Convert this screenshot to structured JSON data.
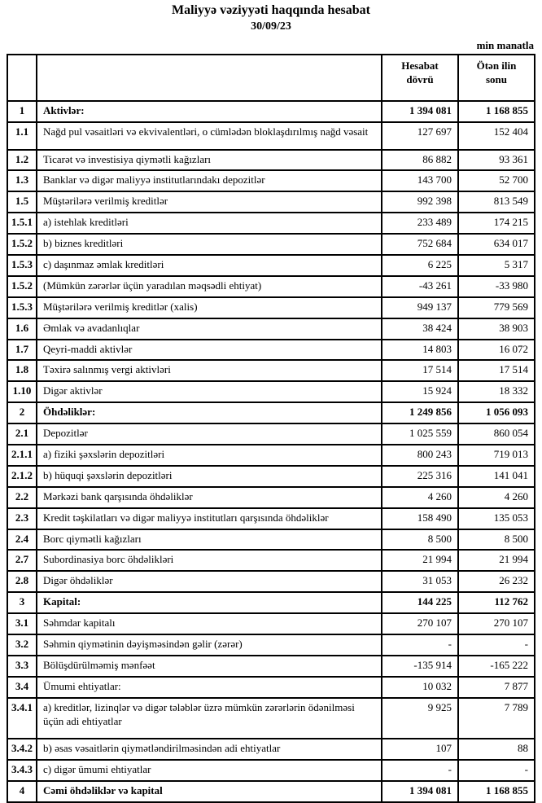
{
  "header": {
    "title": "Maliyyə vəziyyəti haqqında hesabat",
    "date": "30/09/23",
    "unit_note": "min manatla"
  },
  "table": {
    "columns": {
      "no": "",
      "label": "",
      "current": "Hesabat dövrü",
      "previous": "Ötən ilin sonu"
    },
    "rows": [
      {
        "no": "1",
        "label": "Aktivlər:",
        "current": "1 394 081",
        "previous": "1 168 855",
        "bold": true
      },
      {
        "no": "1.1",
        "label": "Nağd pul vəsaitləri və  ekvivalentləri, o cümlədən bloklaşdırılmış nağd vəsait",
        "current": "127 697",
        "previous": "152 404",
        "bold": false,
        "tall": true
      },
      {
        "no": "1.2",
        "label": "Ticarət və investisiya qiymətli kağızları",
        "current": "86 882",
        "previous": "93 361",
        "bold": false
      },
      {
        "no": "1.3",
        "label": "Banklar və digər maliyyə institutlarındakı depozitlər",
        "current": "143 700",
        "previous": "52 700",
        "bold": false
      },
      {
        "no": "1.5",
        "label": "Müştərilərə verilmiş kreditlər",
        "current": "992 398",
        "previous": "813 549",
        "bold": false
      },
      {
        "no": "1.5.1",
        "label": "a) istehlak kreditləri",
        "current": "233 489",
        "previous": "174 215",
        "bold": false
      },
      {
        "no": "1.5.2",
        "label": "b) biznes kreditləri",
        "current": "752 684",
        "previous": "634 017",
        "bold": false
      },
      {
        "no": "1.5.3",
        "label": "c) daşınmaz əmlak kreditləri",
        "current": "6 225",
        "previous": "5 317",
        "bold": false
      },
      {
        "no": "1.5.2",
        "label": "(Mümkün zərərlər üçün yaradılan məqsədli ehtiyat)",
        "current": "-43 261",
        "previous": "-33 980",
        "bold": false
      },
      {
        "no": "1.5.3",
        "label": "Müştərilərə verilmiş kreditlər (xalis)",
        "current": "949 137",
        "previous": "779 569",
        "bold": false
      },
      {
        "no": "1.6",
        "label": "Əmlak və avadanlıqlar",
        "current": "38 424",
        "previous": "38 903",
        "bold": false
      },
      {
        "no": "1.7",
        "label": "Qeyri-maddi aktivlər",
        "current": "14 803",
        "previous": "16 072",
        "bold": false
      },
      {
        "no": "1.8",
        "label": "Təxirə salınmış vergi aktivləri",
        "current": "17 514",
        "previous": "17 514",
        "bold": false
      },
      {
        "no": "1.10",
        "label": "Digər aktivlər",
        "current": "15 924",
        "previous": "18 332",
        "bold": false
      },
      {
        "no": "2",
        "label": "Öhdəliklər:",
        "current": "1 249 856",
        "previous": "1 056 093",
        "bold": true
      },
      {
        "no": "2.1",
        "label": "Depozitlər",
        "current": "1 025 559",
        "previous": "860 054",
        "bold": false
      },
      {
        "no": "2.1.1",
        "label": "a) fiziki şəxslərin depozitləri",
        "current": "800 243",
        "previous": "719 013",
        "bold": false
      },
      {
        "no": "2.1.2",
        "label": "b) hüquqi şəxslərin depozitləri",
        "current": "225 316",
        "previous": "141 041",
        "bold": false
      },
      {
        "no": "2.2",
        "label": "Mərkəzi bank qarşısında öhdəliklər",
        "current": "4 260",
        "previous": "4 260",
        "bold": false
      },
      {
        "no": "2.3",
        "label": "Kredit təşkilatları və digər maliyyə institutları qarşısında öhdəliklər",
        "current": "158 490",
        "previous": "135 053",
        "bold": false
      },
      {
        "no": "2.4",
        "label": "Borc qiymətli kağızları",
        "current": "8 500",
        "previous": "8 500",
        "bold": false
      },
      {
        "no": "2.7",
        "label": "Subordinasiya borc öhdəlikləri",
        "current": "21 994",
        "previous": "21 994",
        "bold": false
      },
      {
        "no": "2.8",
        "label": "Digər öhdəliklər",
        "current": "31 053",
        "previous": "26 232",
        "bold": false
      },
      {
        "no": "3",
        "label": "Kapital:",
        "current": "144 225",
        "previous": "112 762",
        "bold": true
      },
      {
        "no": "3.1",
        "label": "Səhmdar kapitalı",
        "current": "270 107",
        "previous": "270 107",
        "bold": false
      },
      {
        "no": "3.2",
        "label": "Səhmin qiymətinin dəyişməsindən gəlir (zərər)",
        "current": "-",
        "previous": "-",
        "bold": false
      },
      {
        "no": "3.3",
        "label": "Bölüşdürülməmiş mənfəət",
        "current": "-135 914",
        "previous": "-165 222",
        "bold": false
      },
      {
        "no": "3.4",
        "label": "Ümumi ehtiyatlar:",
        "current": "10 032",
        "previous": "7 877",
        "bold": false
      },
      {
        "no": "3.4.1",
        "label": "a) kreditlər, lizinqlər və digər tələblər üzrə mümkün zərərlərin ödənilməsi üçün adi ehtiyatlar",
        "current": "9 925",
        "previous": "7 789",
        "bold": false,
        "tall": true
      },
      {
        "no": "3.4.2",
        "label": "b) əsas vəsaitlərin qiymətləndirilməsindən adi ehtiyatlar",
        "current": "107",
        "previous": "88",
        "bold": false
      },
      {
        "no": "3.4.3",
        "label": "c) digər ümumi ehtiyatlar",
        "current": "-",
        "previous": "-",
        "bold": false
      },
      {
        "no": "4",
        "label": "Cəmi öhdəliklər və kapital",
        "current": "1 394 081",
        "previous": "1 168 855",
        "bold": true
      }
    ]
  }
}
